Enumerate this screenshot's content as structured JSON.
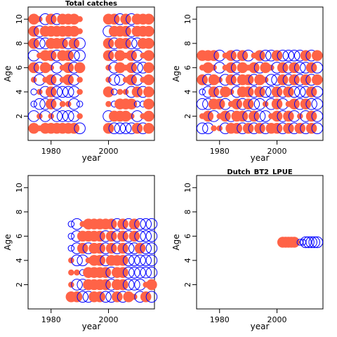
{
  "chart_data": [
    {
      "type": "scatter",
      "title": "Total catches",
      "xlabel": "year",
      "ylabel": "Age",
      "xlim": [
        1972,
        2016
      ],
      "ylim": [
        0,
        11
      ],
      "xticks": [
        1980,
        2000
      ],
      "yticks": [
        2,
        4,
        6,
        8,
        10
      ],
      "positive_color": "#ff6347",
      "negative_color": "#0000ff",
      "years": [
        1974,
        1976,
        1978,
        1980,
        1982,
        1984,
        1986,
        1988,
        1990,
        2000,
        2002,
        2004,
        2006,
        2008,
        2010,
        2012,
        2014
      ],
      "ages": [
        1,
        2,
        3,
        4,
        5,
        6,
        7,
        8,
        9,
        10
      ],
      "residuals": [
        [
          2,
          0.6,
          2,
          2,
          2,
          2,
          2,
          2,
          -2,
          2,
          -2,
          -2,
          -2,
          -2,
          2,
          -2,
          2
        ],
        [
          -2,
          0.6,
          -2,
          0.6,
          -2,
          -2,
          -2,
          -2,
          0.6,
          -2,
          2,
          2,
          2,
          0.6,
          -2,
          0.6,
          2
        ],
        [
          -0.6,
          -2,
          -2,
          2,
          -2,
          0.6,
          0.6,
          -2,
          -0.6,
          0.6,
          -0.6,
          2,
          2,
          2,
          -0.6,
          -0.6,
          2
        ],
        [
          -0.6,
          0.6,
          -2,
          2,
          -2,
          -2,
          -2,
          -2,
          0.6,
          2,
          -0.6,
          0.6,
          0.6,
          -2,
          2,
          -2,
          2
        ],
        [
          0.6,
          -2,
          0.6,
          2,
          -2,
          0.6,
          2,
          -2,
          0.6,
          0.6,
          -2,
          -2,
          0.6,
          2,
          -2,
          0.6,
          2
        ],
        [
          2,
          -2,
          2,
          0.6,
          -2,
          0.6,
          2,
          -2,
          2,
          0.6,
          -2,
          2,
          0.6,
          2,
          -2,
          -2,
          2
        ],
        [
          -2,
          0.6,
          2,
          2,
          -2,
          2,
          2,
          -2,
          -2,
          2,
          -2,
          2,
          0.6,
          2,
          -2,
          0.6,
          2
        ],
        [
          2,
          -2,
          -2,
          2,
          2,
          2,
          -2,
          2,
          -2,
          2,
          -2,
          2,
          2,
          -2,
          -2,
          2,
          2
        ],
        [
          2,
          -2,
          2,
          2,
          2,
          2,
          2,
          2,
          0.6,
          -2,
          2,
          2,
          2,
          -2,
          2,
          2,
          2
        ],
        [
          2,
          0.6,
          -2,
          2,
          -2,
          2,
          2,
          2,
          0.6,
          2,
          2,
          -2,
          2,
          -2,
          2,
          2,
          2
        ]
      ]
    },
    {
      "type": "scatter",
      "title": "",
      "xlabel": "year",
      "ylabel": "Age",
      "xlim": [
        1972,
        2016
      ],
      "ylim": [
        0,
        11
      ],
      "xticks": [
        1980,
        2000
      ],
      "yticks": [
        2,
        4,
        6,
        8,
        10
      ],
      "positive_color": "#ff6347",
      "negative_color": "#0000ff",
      "years": [
        1974,
        1976,
        1978,
        1980,
        1982,
        1984,
        1986,
        1988,
        1990,
        1992,
        1994,
        1996,
        1998,
        2000,
        2002,
        2004,
        2006,
        2008,
        2010,
        2012,
        2014
      ],
      "ages": [
        1,
        2,
        3,
        4,
        5,
        6,
        7
      ],
      "residuals": [
        [
          -2,
          -2,
          0.6,
          0.6,
          -2,
          2,
          2,
          -2,
          2,
          -2,
          2,
          -2,
          2,
          2,
          -2,
          2,
          -2,
          2,
          -2,
          2,
          -2
        ],
        [
          0.6,
          2,
          -2,
          0.6,
          2,
          -2,
          2,
          2,
          -2,
          2,
          -2,
          -2,
          0.6,
          2,
          -2,
          2,
          -2,
          0.6,
          -2,
          2,
          -2
        ],
        [
          -2,
          -2,
          2,
          2,
          -2,
          0.6,
          2,
          -2,
          2,
          -2,
          -2,
          0.6,
          -2,
          2,
          -2,
          0.6,
          2,
          -2,
          2,
          -2,
          -2
        ],
        [
          -0.6,
          -2,
          2,
          -2,
          2,
          0.6,
          -2,
          2,
          2,
          -2,
          2,
          -2,
          -2,
          2,
          -2,
          2,
          -2,
          -2,
          -2,
          2,
          -2
        ],
        [
          2,
          -2,
          2,
          0.6,
          -2,
          2,
          -2,
          2,
          2,
          -2,
          2,
          0.6,
          -2,
          -2,
          2,
          -2,
          2,
          -2,
          2,
          -2,
          2
        ],
        [
          0.6,
          2,
          0.6,
          -2,
          0.6,
          2,
          -2,
          2,
          0.6,
          2,
          -2,
          2,
          0.6,
          -2,
          2,
          -2,
          2,
          -2,
          -2,
          2,
          -2
        ],
        [
          2,
          2,
          2,
          -2,
          0.6,
          2,
          -2,
          2,
          -2,
          0.6,
          2,
          -2,
          -2,
          2,
          -2,
          -2,
          -2,
          -2,
          2,
          -2,
          2
        ]
      ]
    },
    {
      "type": "scatter",
      "title": "",
      "xlabel": "year",
      "ylabel": "Age",
      "xlim": [
        1972,
        2016
      ],
      "ylim": [
        0,
        11
      ],
      "xticks": [
        1980,
        2000
      ],
      "yticks": [
        2,
        4,
        6,
        8,
        10
      ],
      "positive_color": "#ff6347",
      "negative_color": "#0000ff",
      "years": [
        1987,
        1989,
        1991,
        1993,
        1995,
        1997,
        1999,
        2001,
        2003,
        2005,
        2007,
        2009,
        2011,
        2013,
        2015
      ],
      "ages": [
        1,
        2,
        3,
        4,
        5,
        6,
        7
      ],
      "residuals": [
        [
          2,
          2,
          -2,
          -2,
          2,
          2,
          -2,
          -2,
          2,
          -2,
          2,
          0.6,
          -2,
          2,
          -2
        ],
        [
          0.6,
          -2,
          -2,
          2,
          2,
          2,
          2,
          -2,
          2,
          2,
          -2,
          -2,
          -2,
          0.6,
          2
        ],
        [
          0.6,
          0.6,
          -0.6,
          2,
          2,
          2,
          2,
          -2,
          2,
          2,
          -2,
          -2,
          -2,
          -2,
          -2
        ],
        [
          0.6,
          -2,
          -2,
          0.6,
          2,
          2,
          -2,
          2,
          2,
          2,
          -2,
          -2,
          -2,
          -2,
          -2
        ],
        [
          -0.6,
          -2,
          2,
          -2,
          2,
          2,
          -2,
          2,
          -2,
          2,
          -2,
          -2,
          2,
          -2,
          -2
        ],
        [
          -0.6,
          -2,
          2,
          2,
          2,
          2,
          -2,
          2,
          -2,
          2,
          -2,
          2,
          -2,
          -2,
          -2
        ],
        [
          -0.6,
          -2,
          0.6,
          2,
          2,
          2,
          2,
          2,
          -2,
          2,
          -2,
          2,
          -2,
          -2,
          -2
        ]
      ]
    },
    {
      "type": "scatter",
      "title": "Dutch_BT2_LPUE",
      "xlabel": "year",
      "ylabel": "Age",
      "xlim": [
        1972,
        2016
      ],
      "ylim": [
        0,
        11
      ],
      "xticks": [
        1980,
        2000
      ],
      "yticks": [
        2,
        4,
        6,
        8,
        10
      ],
      "positive_color": "#ff6347",
      "negative_color": "#0000ff",
      "years": [
        2002,
        2003,
        2004,
        2005,
        2006,
        2007,
        2008,
        2009,
        2010,
        2011,
        2012,
        2013,
        2014
      ],
      "ages": [
        5.5
      ],
      "residuals": [
        [
          2,
          2,
          2,
          2,
          2,
          0.6,
          -0.6,
          -0.6,
          -2,
          -2,
          -2,
          -2,
          -2
        ]
      ]
    }
  ]
}
